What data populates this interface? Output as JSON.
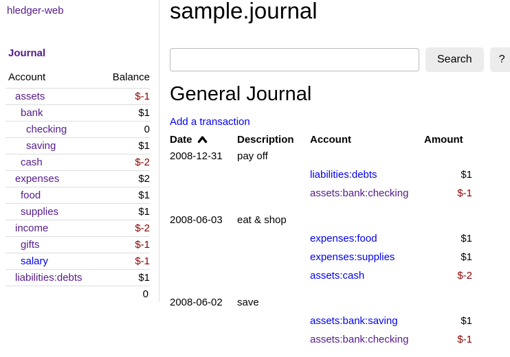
{
  "app": {
    "brand": "hledger-web"
  },
  "colors": {
    "link": "#0000ee",
    "visited_link": "#551a8b",
    "negative_amount": "#8b0000",
    "button_bg": "#ececec",
    "divider": "#dddddd"
  },
  "sidebar": {
    "journal_label": "Journal",
    "table": {
      "account_header": "Account",
      "balance_header": "Balance",
      "rows": [
        {
          "name": "assets",
          "depth": 1,
          "balance": "$-1",
          "negative": true,
          "visited": true
        },
        {
          "name": "bank",
          "depth": 2,
          "balance": "$1",
          "negative": false,
          "visited": true
        },
        {
          "name": "checking",
          "depth": 3,
          "balance": "0",
          "negative": false,
          "visited": true
        },
        {
          "name": "saving",
          "depth": 3,
          "balance": "$1",
          "negative": false,
          "visited": true
        },
        {
          "name": "cash",
          "depth": 2,
          "balance": "$-2",
          "negative": true,
          "visited": true
        },
        {
          "name": "expenses",
          "depth": 1,
          "balance": "$2",
          "negative": false,
          "visited": true
        },
        {
          "name": "food",
          "depth": 2,
          "balance": "$1",
          "negative": false,
          "visited": true
        },
        {
          "name": "supplies",
          "depth": 2,
          "balance": "$1",
          "negative": false,
          "visited": true
        },
        {
          "name": "income",
          "depth": 1,
          "balance": "$-2",
          "negative": true,
          "visited": true
        },
        {
          "name": "gifts",
          "depth": 2,
          "balance": "$-1",
          "negative": true,
          "visited": true
        },
        {
          "name": "salary",
          "depth": 2,
          "balance": "$-1",
          "negative": true,
          "visited": false
        },
        {
          "name": "liabilities:debts",
          "depth": 1,
          "balance": "$1",
          "negative": false,
          "visited": true
        }
      ],
      "total": "0"
    }
  },
  "header": {
    "title": "sample.journal"
  },
  "search": {
    "value": "",
    "placeholder": "",
    "button_label": "Search",
    "help_label": "?"
  },
  "journal": {
    "heading": "General Journal",
    "add_link": "Add a transaction",
    "columns": {
      "date": "Date",
      "description": "Description",
      "account": "Account",
      "amount": "Amount"
    },
    "sort": {
      "column": "date",
      "direction": "ascending"
    },
    "transactions": [
      {
        "date": "2008-12-31",
        "description": "pay off",
        "postings": [
          {
            "account": "liabilities:debts",
            "amount": "$1",
            "negative": false,
            "visited": false
          },
          {
            "account": "assets:bank:checking",
            "amount": "$-1",
            "negative": true,
            "visited": true
          }
        ]
      },
      {
        "date": "2008-06-03",
        "description": "eat & shop",
        "postings": [
          {
            "account": "expenses:food",
            "amount": "$1",
            "negative": false,
            "visited": false
          },
          {
            "account": "expenses:supplies",
            "amount": "$1",
            "negative": false,
            "visited": false
          },
          {
            "account": "assets:cash",
            "amount": "$-2",
            "negative": true,
            "visited": false
          }
        ]
      },
      {
        "date": "2008-06-02",
        "description": "save",
        "postings": [
          {
            "account": "assets:bank:saving",
            "amount": "$1",
            "negative": false,
            "visited": false
          },
          {
            "account": "assets:bank:checking",
            "amount": "$-1",
            "negative": true,
            "visited": true
          }
        ]
      }
    ]
  }
}
